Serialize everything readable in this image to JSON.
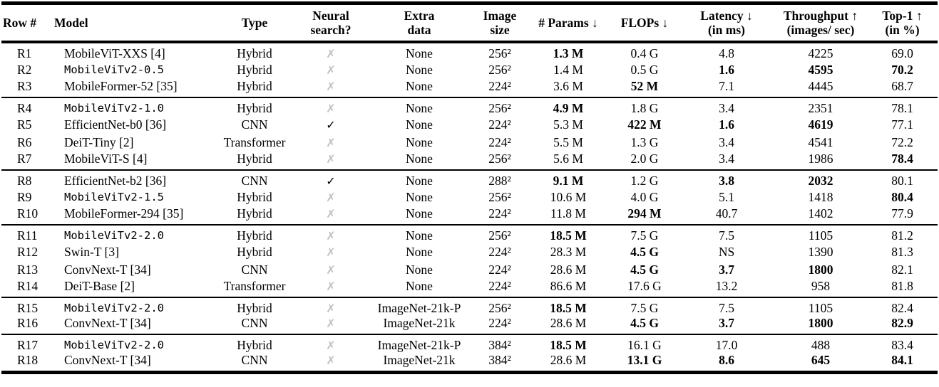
{
  "page": {
    "background": "#ffffff",
    "text_color": "#000000"
  },
  "marks": {
    "check": "✓",
    "cross": "✗",
    "cross_color": "#c0c0c0",
    "check_color": "#000000"
  },
  "table": {
    "columns": [
      {
        "key": "row-id",
        "label": "Row #",
        "align": "left"
      },
      {
        "key": "model",
        "label": "Model",
        "align": "left"
      },
      {
        "key": "type",
        "label": "Type",
        "align": "center"
      },
      {
        "key": "neural-search",
        "label": "Neural\nsearch?",
        "align": "center"
      },
      {
        "key": "extra-data",
        "label": "Extra\ndata",
        "align": "center"
      },
      {
        "key": "image-size",
        "label": "Image\nsize",
        "align": "center"
      },
      {
        "key": "params",
        "label": "# Params ↓",
        "align": "center"
      },
      {
        "key": "flops",
        "label": "FLOPs ↓",
        "align": "center"
      },
      {
        "key": "latency",
        "label": "Latency ↓\n(in ms)",
        "align": "center"
      },
      {
        "key": "throughput",
        "label": "Throughput ↑\n(images/ sec)",
        "align": "center"
      },
      {
        "key": "top1",
        "label": "Top-1 ↑\n(in %)",
        "align": "center"
      }
    ],
    "groups": [
      {
        "rows": [
          {
            "cells": [
              "R1",
              "MobileViT-XXS [4]",
              "Hybrid",
              "✗",
              "None",
              "256²",
              "1.3 M",
              "0.4 G",
              "4.8",
              "4225",
              "69.0"
            ],
            "bold": [
              6
            ],
            "mono": false
          },
          {
            "cells": [
              "R2",
              "MobileViTv2-0.5",
              "Hybrid",
              "✗",
              "None",
              "256²",
              "1.4 M",
              "0.5 G",
              "1.6",
              "4595",
              "70.2"
            ],
            "bold": [
              8,
              9,
              10
            ],
            "mono": true
          },
          {
            "cells": [
              "R3",
              "MobileFormer-52 [35]",
              "Hybrid",
              "✗",
              "None",
              "224²",
              "3.6 M",
              "52 M",
              "7.1",
              "4445",
              "68.7"
            ],
            "bold": [
              7
            ],
            "mono": false
          }
        ]
      },
      {
        "rows": [
          {
            "cells": [
              "R4",
              "MobileViTv2-1.0",
              "Hybrid",
              "✗",
              "None",
              "256²",
              "4.9 M",
              "1.8 G",
              "3.4",
              "2351",
              "78.1"
            ],
            "bold": [
              6
            ],
            "mono": true
          },
          {
            "cells": [
              "R5",
              "EfficientNet-b0 [36]",
              "CNN",
              "✓",
              "None",
              "224²",
              "5.3 M",
              "422 M",
              "1.6",
              "4619",
              "77.1"
            ],
            "bold": [
              7,
              8,
              9
            ],
            "mono": false
          },
          {
            "cells": [
              "R6",
              "DeiT-Tiny [2]",
              "Transformer",
              "✗",
              "None",
              "224²",
              "5.5 M",
              "1.3 G",
              "3.4",
              "4541",
              "72.2"
            ],
            "bold": [],
            "mono": false
          },
          {
            "cells": [
              "R7",
              "MobileViT-S [4]",
              "Hybrid",
              "✗",
              "None",
              "256²",
              "5.6 M",
              "2.0 G",
              "3.4",
              "1986",
              "78.4"
            ],
            "bold": [
              10
            ],
            "mono": false
          }
        ]
      },
      {
        "rows": [
          {
            "cells": [
              "R8",
              "EfficientNet-b2 [36]",
              "CNN",
              "✓",
              "None",
              "288²",
              "9.1 M",
              "1.2 G",
              "3.8",
              "2032",
              "80.1"
            ],
            "bold": [
              6,
              8,
              9
            ],
            "mono": false
          },
          {
            "cells": [
              "R9",
              "MobileViTv2-1.5",
              "Hybrid",
              "✗",
              "None",
              "256²",
              "10.6 M",
              "4.0 G",
              "5.1",
              "1418",
              "80.4"
            ],
            "bold": [
              10
            ],
            "mono": true
          },
          {
            "cells": [
              "R10",
              "MobileFormer-294 [35]",
              "Hybrid",
              "✗",
              "None",
              "224²",
              "11.8 M",
              "294 M",
              "40.7",
              "1402",
              "77.9"
            ],
            "bold": [
              7
            ],
            "mono": false
          }
        ]
      },
      {
        "rows": [
          {
            "cells": [
              "R11",
              "MobileViTv2-2.0",
              "Hybrid",
              "✗",
              "None",
              "256²",
              "18.5 M",
              "7.5 G",
              "7.5",
              "1105",
              "81.2"
            ],
            "bold": [
              6
            ],
            "mono": true
          },
          {
            "cells": [
              "R12",
              "Swin-T [3]",
              "Hybrid",
              "✗",
              "None",
              "224²",
              "28.3 M",
              "4.5 G",
              "NS",
              "1390",
              "81.3"
            ],
            "bold": [
              7
            ],
            "mono": false
          },
          {
            "cells": [
              "R13",
              "ConvNext-T [34]",
              "CNN",
              "✗",
              "None",
              "224²",
              "28.6 M",
              "4.5 G",
              "3.7",
              "1800",
              "82.1"
            ],
            "bold": [
              7,
              8,
              9
            ],
            "mono": false
          },
          {
            "cells": [
              "R14",
              "DeiT-Base [2]",
              "Transformer",
              "✗",
              "None",
              "224²",
              "86.6 M",
              "17.6 G",
              "13.2",
              "958",
              "81.8"
            ],
            "bold": [],
            "mono": false
          }
        ]
      },
      {
        "rows": [
          {
            "cells": [
              "R15",
              "MobileViTv2-2.0",
              "Hybrid",
              "✗",
              "ImageNet-21k-P",
              "256²",
              "18.5 M",
              "7.5 G",
              "7.5",
              "1105",
              "82.4"
            ],
            "bold": [
              6
            ],
            "mono": true
          },
          {
            "cells": [
              "R16",
              "ConvNext-T [34]",
              "CNN",
              "✗",
              "ImageNet-21k",
              "224²",
              "28.6 M",
              "4.5 G",
              "3.7",
              "1800",
              "82.9"
            ],
            "bold": [
              7,
              8,
              9,
              10
            ],
            "mono": false
          }
        ]
      },
      {
        "rows": [
          {
            "cells": [
              "R17",
              "MobileViTv2-2.0",
              "Hybrid",
              "✗",
              "ImageNet-21k-P",
              "384²",
              "18.5 M",
              "16.1 G",
              "17.0",
              "488",
              "83.4"
            ],
            "bold": [
              6
            ],
            "mono": true
          },
          {
            "cells": [
              "R18",
              "ConvNext-T [34]",
              "CNN",
              "✗",
              "ImageNet-21k",
              "384²",
              "28.6 M",
              "13.1 G",
              "8.6",
              "645",
              "84.1"
            ],
            "bold": [
              7,
              8,
              9,
              10
            ],
            "mono": false
          }
        ]
      }
    ]
  }
}
